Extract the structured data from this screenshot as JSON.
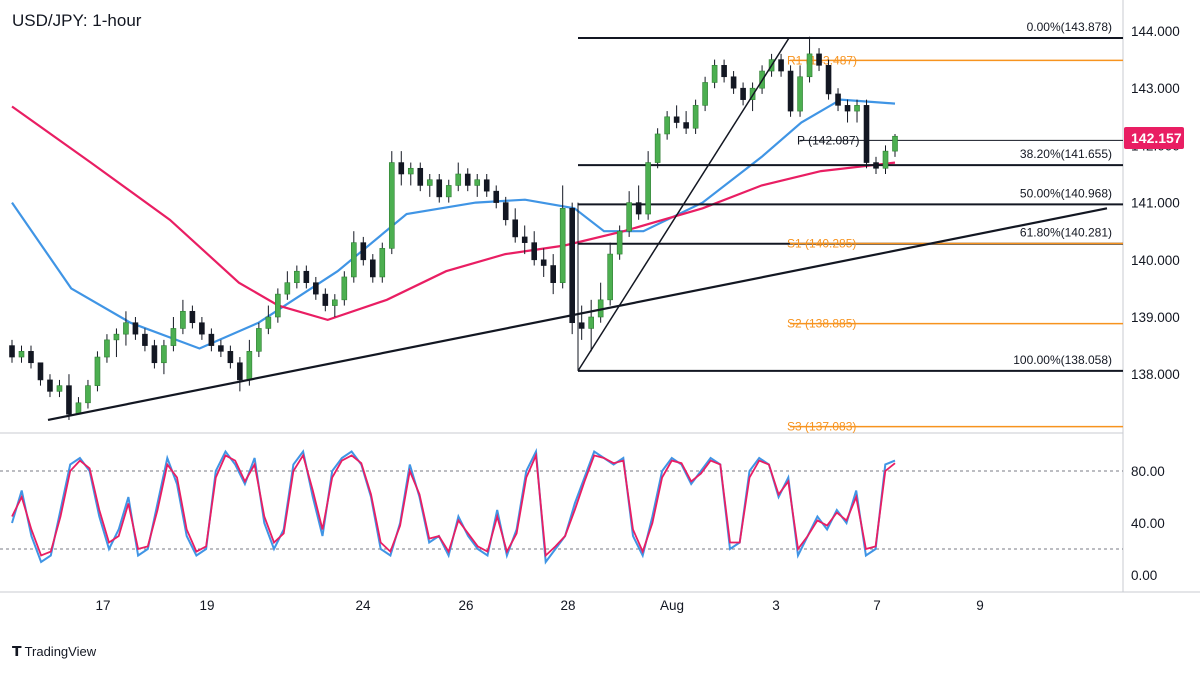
{
  "chart_data": {
    "type": "candlestick",
    "title": "USD/JPY: 1-hour",
    "price_axis": {
      "ticks": [
        "144.000",
        "143.000",
        "142.000",
        "141.000",
        "140.000",
        "139.000",
        "138.000"
      ],
      "range": [
        136.9,
        144.45
      ]
    },
    "current_price": "142.157",
    "time_axis": {
      "ticks": [
        "17",
        "19",
        "24",
        "26",
        "28",
        "Aug",
        "3",
        "7",
        "9"
      ]
    },
    "fib_levels": [
      {
        "label": "0.00%(143.878)",
        "value": 143.878
      },
      {
        "label": "38.20%(141.655)",
        "value": 141.655
      },
      {
        "label": "50.00%(140.968)",
        "value": 140.968
      },
      {
        "label": "61.80%(140.281)",
        "value": 140.281
      },
      {
        "label": "100.00%(138.058)",
        "value": 138.058
      }
    ],
    "pivot_levels": [
      {
        "label": "R1 (143.487)",
        "value": 143.487,
        "color": "#f7931e"
      },
      {
        "label": "P (142.087)",
        "value": 142.087,
        "color": "#131722"
      },
      {
        "label": "S1 (140.285)",
        "value": 140.285,
        "color": "#f7931e"
      },
      {
        "label": "S2 (138.885)",
        "value": 138.885,
        "color": "#f7931e"
      },
      {
        "label": "S3 (137.083)",
        "value": 137.083,
        "color": "#f7931e"
      }
    ],
    "trendline": {
      "from": {
        "date": "Jul 16",
        "price": 137.2
      },
      "to": {
        "date": "Aug 8",
        "price": 140.9
      }
    },
    "fib_swing_line": {
      "from": {
        "date": "Jul 28",
        "price": 138.058
      },
      "to": {
        "date": "Aug 3",
        "price": 143.878
      }
    },
    "moving_averages": [
      {
        "color": "#4095e5",
        "points": [
          [
            0,
            141.0
          ],
          [
            60,
            139.5
          ],
          [
            120,
            138.9
          ],
          [
            190,
            138.45
          ],
          [
            250,
            138.9
          ],
          [
            330,
            139.8
          ],
          [
            400,
            140.8
          ],
          [
            470,
            141.0
          ],
          [
            520,
            141.05
          ],
          [
            570,
            140.9
          ],
          [
            600,
            140.5
          ],
          [
            640,
            140.5
          ],
          [
            700,
            141.0
          ],
          [
            760,
            141.8
          ],
          [
            800,
            142.4
          ],
          [
            840,
            142.8
          ],
          [
            895,
            142.73
          ]
        ]
      },
      {
        "color": "#e91e63",
        "points": [
          [
            0,
            142.68
          ],
          [
            80,
            141.7
          ],
          [
            160,
            140.7
          ],
          [
            230,
            139.6
          ],
          [
            270,
            139.2
          ],
          [
            320,
            138.95
          ],
          [
            380,
            139.3
          ],
          [
            440,
            139.8
          ],
          [
            500,
            140.1
          ],
          [
            560,
            140.25
          ],
          [
            620,
            140.5
          ],
          [
            700,
            140.9
          ],
          [
            760,
            141.3
          ],
          [
            820,
            141.55
          ],
          [
            895,
            141.7
          ]
        ]
      }
    ],
    "candles": [
      [
        138.5,
        138.6,
        138.2,
        138.3
      ],
      [
        138.3,
        138.5,
        138.2,
        138.4
      ],
      [
        138.4,
        138.5,
        138.1,
        138.2
      ],
      [
        138.2,
        138.2,
        137.8,
        137.9
      ],
      [
        137.9,
        138.0,
        137.6,
        137.7
      ],
      [
        137.7,
        137.9,
        137.6,
        137.8
      ],
      [
        137.8,
        138.0,
        137.2,
        137.3
      ],
      [
        137.3,
        137.6,
        137.3,
        137.5
      ],
      [
        137.5,
        137.9,
        137.4,
        137.8
      ],
      [
        137.8,
        138.4,
        137.7,
        138.3
      ],
      [
        138.3,
        138.7,
        138.2,
        138.6
      ],
      [
        138.6,
        138.8,
        138.3,
        138.7
      ],
      [
        138.7,
        139.1,
        138.5,
        138.9
      ],
      [
        138.9,
        139.0,
        138.6,
        138.7
      ],
      [
        138.7,
        138.8,
        138.4,
        138.5
      ],
      [
        138.5,
        138.6,
        138.1,
        138.2
      ],
      [
        138.2,
        138.6,
        138.0,
        138.5
      ],
      [
        138.5,
        139.0,
        138.4,
        138.8
      ],
      [
        138.8,
        139.3,
        138.7,
        139.1
      ],
      [
        139.1,
        139.2,
        138.8,
        138.9
      ],
      [
        138.9,
        139.0,
        138.6,
        138.7
      ],
      [
        138.7,
        138.8,
        138.4,
        138.5
      ],
      [
        138.5,
        138.6,
        138.3,
        138.4
      ],
      [
        138.4,
        138.5,
        138.1,
        138.2
      ],
      [
        138.2,
        138.3,
        137.7,
        137.9
      ],
      [
        137.9,
        138.6,
        137.8,
        138.4
      ],
      [
        138.4,
        138.9,
        138.3,
        138.8
      ],
      [
        138.8,
        139.2,
        138.7,
        139.0
      ],
      [
        139.0,
        139.5,
        138.9,
        139.4
      ],
      [
        139.4,
        139.8,
        139.3,
        139.6
      ],
      [
        139.6,
        139.9,
        139.5,
        139.8
      ],
      [
        139.8,
        139.9,
        139.5,
        139.6
      ],
      [
        139.6,
        139.7,
        139.3,
        139.4
      ],
      [
        139.4,
        139.5,
        139.1,
        139.2
      ],
      [
        139.2,
        139.4,
        139.0,
        139.3
      ],
      [
        139.3,
        139.8,
        139.2,
        139.7
      ],
      [
        139.7,
        140.5,
        139.6,
        140.3
      ],
      [
        140.3,
        140.4,
        139.9,
        140.0
      ],
      [
        140.0,
        140.1,
        139.6,
        139.7
      ],
      [
        139.7,
        140.3,
        139.6,
        140.2
      ],
      [
        140.2,
        141.9,
        140.1,
        141.7
      ],
      [
        141.7,
        141.9,
        141.3,
        141.5
      ],
      [
        141.5,
        141.7,
        141.3,
        141.6
      ],
      [
        141.6,
        141.7,
        141.2,
        141.3
      ],
      [
        141.3,
        141.5,
        141.1,
        141.4
      ],
      [
        141.4,
        141.5,
        141.0,
        141.1
      ],
      [
        141.1,
        141.4,
        141.0,
        141.3
      ],
      [
        141.3,
        141.7,
        141.2,
        141.5
      ],
      [
        141.5,
        141.6,
        141.2,
        141.3
      ],
      [
        141.3,
        141.5,
        141.1,
        141.4
      ],
      [
        141.4,
        141.5,
        141.1,
        141.2
      ],
      [
        141.2,
        141.3,
        140.9,
        141.0
      ],
      [
        141.0,
        141.1,
        140.6,
        140.7
      ],
      [
        140.7,
        140.9,
        140.3,
        140.4
      ],
      [
        140.4,
        140.6,
        140.1,
        140.3
      ],
      [
        140.3,
        140.5,
        139.9,
        140.0
      ],
      [
        140.0,
        140.2,
        139.7,
        139.9
      ],
      [
        139.9,
        140.1,
        139.4,
        139.6
      ],
      [
        139.6,
        141.3,
        139.5,
        140.9
      ],
      [
        140.9,
        141.0,
        138.7,
        138.9
      ],
      [
        138.9,
        139.2,
        138.6,
        138.8
      ],
      [
        138.8,
        139.3,
        138.4,
        139.0
      ],
      [
        139.0,
        139.6,
        138.9,
        139.3
      ],
      [
        139.3,
        140.3,
        139.2,
        140.1
      ],
      [
        140.1,
        140.6,
        140.0,
        140.5
      ],
      [
        140.5,
        141.2,
        140.4,
        141.0
      ],
      [
        141.0,
        141.3,
        140.7,
        140.8
      ],
      [
        140.8,
        141.9,
        140.7,
        141.7
      ],
      [
        141.7,
        142.3,
        141.6,
        142.2
      ],
      [
        142.2,
        142.6,
        142.1,
        142.5
      ],
      [
        142.5,
        142.7,
        142.3,
        142.4
      ],
      [
        142.4,
        142.6,
        142.2,
        142.3
      ],
      [
        142.3,
        142.8,
        142.2,
        142.7
      ],
      [
        142.7,
        143.2,
        142.6,
        143.1
      ],
      [
        143.1,
        143.5,
        143.0,
        143.4
      ],
      [
        143.4,
        143.5,
        143.1,
        143.2
      ],
      [
        143.2,
        143.3,
        142.9,
        143.0
      ],
      [
        143.0,
        143.1,
        142.7,
        142.8
      ],
      [
        142.8,
        143.1,
        142.6,
        143.0
      ],
      [
        143.0,
        143.4,
        142.9,
        143.3
      ],
      [
        143.3,
        143.6,
        143.2,
        143.5
      ],
      [
        143.5,
        143.6,
        143.2,
        143.3
      ],
      [
        143.3,
        143.4,
        142.5,
        142.6
      ],
      [
        142.6,
        143.4,
        142.5,
        143.2
      ],
      [
        143.2,
        143.9,
        143.1,
        143.6
      ],
      [
        143.6,
        143.7,
        143.3,
        143.4
      ],
      [
        143.4,
        143.5,
        142.8,
        142.9
      ],
      [
        142.9,
        143.0,
        142.6,
        142.7
      ],
      [
        142.7,
        142.8,
        142.4,
        142.6
      ],
      [
        142.6,
        142.8,
        142.4,
        142.7
      ],
      [
        142.7,
        142.8,
        141.6,
        141.7
      ],
      [
        141.7,
        141.8,
        141.5,
        141.6
      ],
      [
        141.6,
        142.0,
        141.5,
        141.9
      ],
      [
        141.9,
        142.2,
        141.8,
        142.16
      ]
    ],
    "oscillator": {
      "axis_ticks": [
        "80.00",
        "40.00",
        "0.00"
      ],
      "range": [
        0,
        100
      ],
      "levels": [
        80,
        20
      ],
      "k_color": "#4095e5",
      "d_color": "#e91e63",
      "k": [
        40,
        65,
        30,
        10,
        15,
        50,
        85,
        90,
        80,
        45,
        20,
        35,
        60,
        15,
        20,
        55,
        90,
        70,
        30,
        15,
        20,
        80,
        95,
        85,
        70,
        90,
        40,
        20,
        35,
        85,
        95,
        60,
        30,
        80,
        90,
        95,
        85,
        60,
        20,
        15,
        40,
        85,
        60,
        25,
        30,
        15,
        45,
        30,
        20,
        15,
        50,
        15,
        35,
        80,
        95,
        10,
        20,
        30,
        55,
        75,
        95,
        90,
        85,
        90,
        30,
        15,
        45,
        80,
        90,
        85,
        70,
        80,
        90,
        85,
        20,
        25,
        80,
        90,
        85,
        60,
        75,
        15,
        30,
        45,
        35,
        50,
        40,
        65,
        15,
        20,
        85,
        88
      ],
      "d": [
        45,
        60,
        35,
        15,
        18,
        45,
        80,
        88,
        82,
        50,
        25,
        30,
        55,
        20,
        22,
        50,
        85,
        75,
        35,
        18,
        22,
        75,
        92,
        88,
        72,
        85,
        45,
        25,
        32,
        80,
        92,
        65,
        35,
        75,
        88,
        92,
        86,
        62,
        25,
        18,
        38,
        80,
        62,
        28,
        30,
        18,
        42,
        32,
        22,
        18,
        45,
        18,
        32,
        75,
        92,
        15,
        22,
        30,
        50,
        72,
        92,
        90,
        86,
        88,
        35,
        18,
        40,
        75,
        88,
        86,
        72,
        78,
        88,
        85,
        25,
        25,
        75,
        88,
        85,
        62,
        72,
        20,
        30,
        42,
        38,
        48,
        42,
        60,
        20,
        22,
        80,
        86
      ]
    },
    "brand": "TradingView"
  }
}
